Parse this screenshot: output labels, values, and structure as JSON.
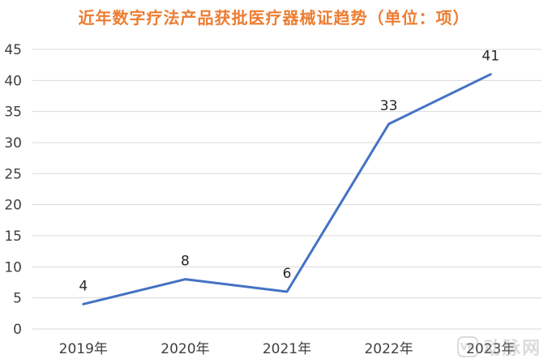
{
  "chart_data": {
    "type": "line",
    "title": "近年数字疗法产品获批医疗器械证趋势（单位：项）",
    "categories": [
      "2019年",
      "2020年",
      "2021年",
      "2022年",
      "2023年"
    ],
    "series": [
      {
        "values": [
          4,
          8,
          6,
          33,
          41
        ],
        "color": "#4472C4"
      }
    ],
    "ylim": [
      0,
      45
    ],
    "yticks": [
      0,
      5,
      10,
      15,
      20,
      25,
      30,
      35,
      40,
      45
    ],
    "grid": true,
    "legend": "none",
    "data_labels": true
  },
  "watermark": {
    "badge": "VB",
    "text": "动脉网"
  }
}
